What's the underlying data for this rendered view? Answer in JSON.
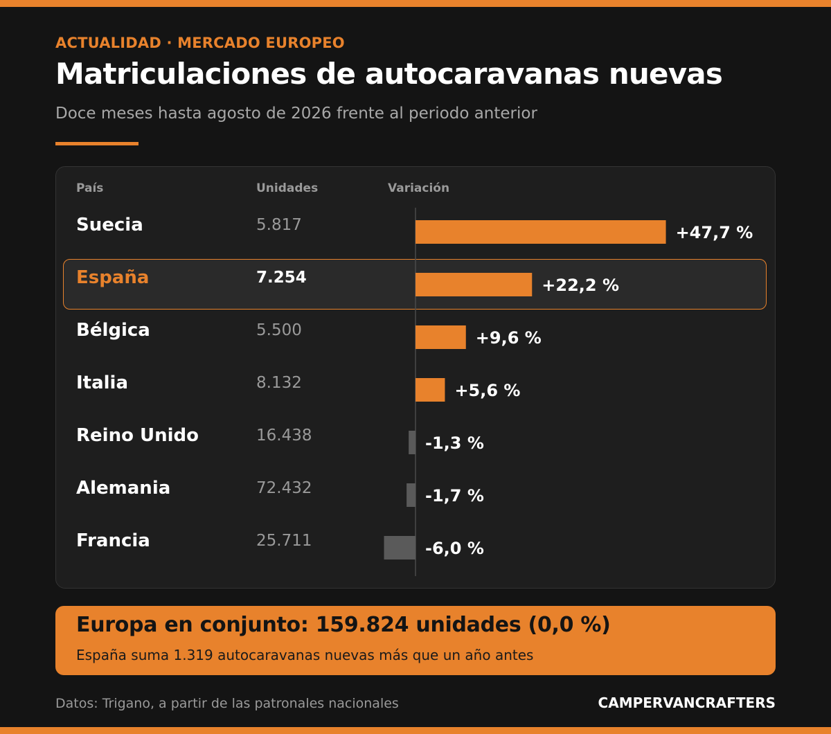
{
  "header": {
    "kicker": "ACTUALIDAD · MERCADO EUROPEO",
    "title": "Matriculaciones de autocaravanas nuevas",
    "subtitle": "Doce meses hasta agosto de 2026 frente al periodo anterior"
  },
  "columns": {
    "country": "País",
    "units": "Unidades",
    "change": "Variación"
  },
  "chart_data": {
    "type": "bar",
    "orientation": "horizontal",
    "categories": [
      "Suecia",
      "España",
      "Bélgica",
      "Italia",
      "Reino Unido",
      "Alemania",
      "Francia"
    ],
    "units_display": [
      "5.817",
      "7.254",
      "5.500",
      "8.132",
      "16.438",
      "72.432",
      "25.711"
    ],
    "units": [
      5817,
      7254,
      5500,
      8132,
      16438,
      72432,
      25711
    ],
    "values": [
      47.7,
      22.2,
      9.6,
      5.6,
      -1.3,
      -1.7,
      -6.0
    ],
    "value_labels": [
      "+47,7 %",
      "+22,2 %",
      "+9,6 %",
      "+5,6 %",
      "-1,3 %",
      "-1,7 %",
      "-6,0 %"
    ],
    "highlight": "España",
    "colors": {
      "positive": "#E8822C",
      "negative": "#5A5A5A",
      "baseline": "#4A4A4A",
      "highlight": "#E8822C"
    }
  },
  "summary": {
    "main": "Europa en conjunto: 159.824 unidades (0,0 %)",
    "sub": "España suma 1.319 autocaravanas nuevas más que un año antes"
  },
  "footer": {
    "source": "Datos: Trigano, a partir de las patronales nacionales",
    "brand": "CAMPERVANCRAFTERS"
  },
  "colors": {
    "background": "#141414",
    "accent": "#E8822C",
    "panel": "#1E1E1E"
  }
}
